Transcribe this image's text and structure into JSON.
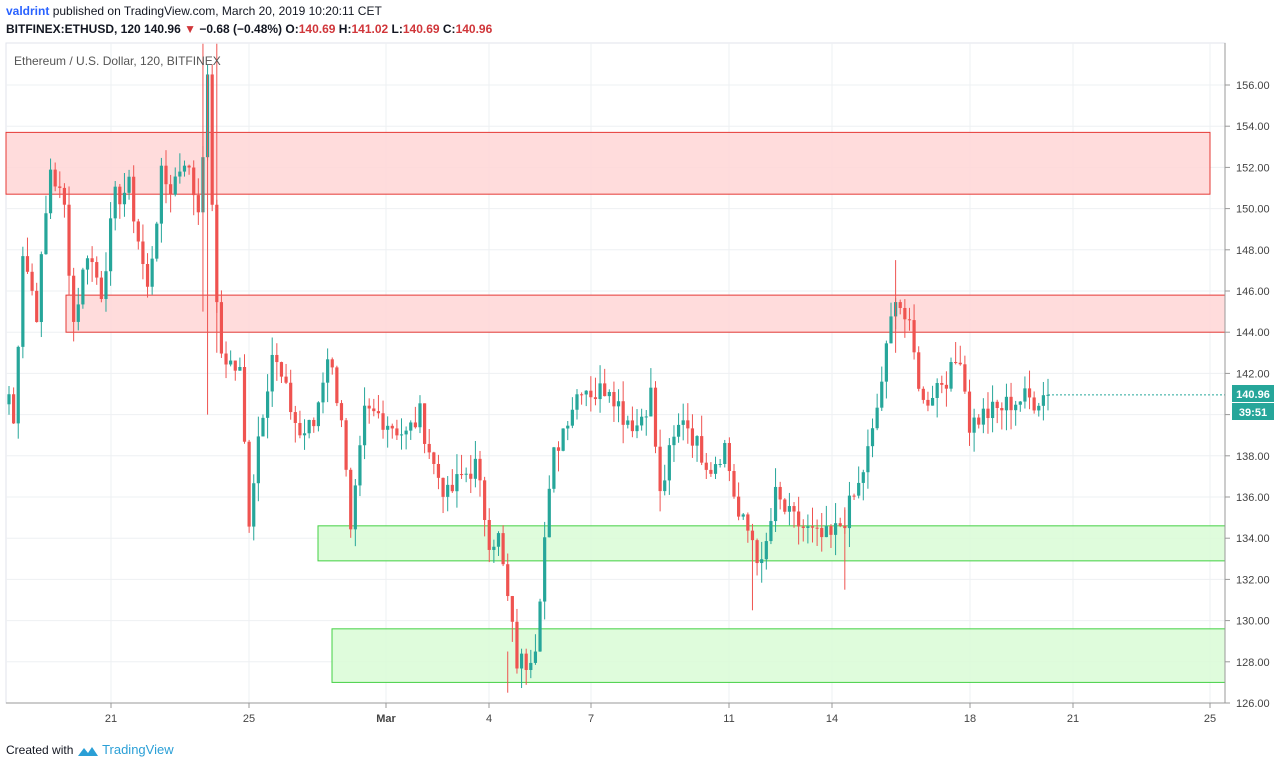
{
  "header": {
    "user": "valdrint",
    "published": "published on TradingView.com, March 20, 2019 10:20:11 CET",
    "symbol": "BITFINEX:ETHUSD, 120",
    "last": "140.96",
    "change_arrow": "▼",
    "change": "−0.68 (−0.48%)",
    "o_label": "O:",
    "o_val": "140.69",
    "h_label": "H:",
    "h_val": "141.02",
    "l_label": "L:",
    "l_val": "140.69",
    "c_label": "C:",
    "c_val": "140.96"
  },
  "footer": {
    "created_with": "Created with",
    "brand": "TradingView"
  },
  "colors": {
    "up": "#26a69a",
    "down": "#ef5350",
    "resistance_fill": "#ffd6d6",
    "resistance_stroke": "#e53935",
    "support_fill": "#d9fbd6",
    "support_stroke": "#43d043",
    "price_tag": "#26a69a"
  },
  "chart_data": {
    "type": "candlestick",
    "title": "Ethereum / U.S. Dollar, 120, BITFINEX",
    "ylim": [
      126,
      157
    ],
    "y_ticks": [
      "156.00",
      "154.00",
      "152.00",
      "150.00",
      "148.00",
      "146.00",
      "144.00",
      "142.00",
      "140.00",
      "138.00",
      "136.00",
      "134.00",
      "132.00",
      "130.00",
      "128.00",
      "126.00"
    ],
    "x_ticks": [
      "21",
      "25",
      "Mar",
      "4",
      "7",
      "11",
      "14",
      "18",
      "21",
      "25"
    ],
    "price_label": "140.96",
    "countdown_label": "39:51",
    "zones": [
      {
        "kind": "resistance",
        "from": "Feb 18",
        "to": "Mar 25",
        "low": 150.7,
        "high": 153.7
      },
      {
        "kind": "resistance",
        "from": "Feb 20",
        "to": "Mar 26",
        "low": 144.0,
        "high": 145.8
      },
      {
        "kind": "support",
        "from": "Feb 28",
        "to": "Mar 26",
        "low": 132.9,
        "high": 134.6
      },
      {
        "kind": "support",
        "from": "Mar 1",
        "to": "Mar 26",
        "low": 127.0,
        "high": 129.6
      }
    ],
    "path": [
      [
        0,
        141
      ],
      [
        1,
        139.5
      ],
      [
        3,
        148
      ],
      [
        6,
        145
      ],
      [
        9,
        152
      ],
      [
        12,
        150
      ],
      [
        14,
        144.5
      ],
      [
        17,
        148
      ],
      [
        20,
        146
      ],
      [
        23,
        150.5
      ],
      [
        26,
        151
      ],
      [
        30,
        146
      ],
      [
        33,
        151.5
      ],
      [
        35,
        151
      ],
      [
        38,
        152.5
      ],
      [
        41,
        150
      ],
      [
        43,
        156
      ],
      [
        45,
        145
      ],
      [
        46,
        143
      ],
      [
        50,
        142
      ],
      [
        52,
        135
      ],
      [
        54,
        139
      ],
      [
        57,
        143
      ],
      [
        60,
        141
      ],
      [
        63,
        139
      ],
      [
        66,
        139.5
      ],
      [
        69,
        143
      ],
      [
        72,
        140
      ],
      [
        74,
        134
      ],
      [
        77,
        140
      ],
      [
        80,
        140
      ],
      [
        83,
        139.5
      ],
      [
        86,
        139
      ],
      [
        89,
        140
      ],
      [
        92,
        137.5
      ],
      [
        95,
        136
      ],
      [
        98,
        137
      ],
      [
        101,
        137.5
      ],
      [
        104,
        134
      ],
      [
        106,
        134
      ],
      [
        108,
        131
      ],
      [
        110,
        128
      ],
      [
        112,
        128
      ],
      [
        114,
        129
      ],
      [
        116,
        134
      ],
      [
        118,
        138
      ],
      [
        121,
        140
      ],
      [
        124,
        141.5
      ],
      [
        127,
        141
      ],
      [
        130,
        141.5
      ],
      [
        133,
        140
      ],
      [
        136,
        139.5
      ],
      [
        139,
        141
      ],
      [
        141,
        136
      ],
      [
        143,
        138
      ],
      [
        146,
        140
      ],
      [
        149,
        138.5
      ],
      [
        152,
        137.5
      ],
      [
        155,
        138.5
      ],
      [
        158,
        135
      ],
      [
        161,
        134
      ],
      [
        163,
        132.5
      ],
      [
        166,
        136
      ],
      [
        169,
        135
      ],
      [
        172,
        134.5
      ],
      [
        175,
        134
      ],
      [
        178,
        134
      ],
      [
        181,
        135
      ],
      [
        184,
        136.5
      ],
      [
        187,
        139
      ],
      [
        190,
        143
      ],
      [
        192,
        146
      ],
      [
        195,
        144
      ],
      [
        198,
        140.5
      ],
      [
        201,
        141.5
      ],
      [
        204,
        142
      ],
      [
        206,
        143
      ],
      [
        208,
        139.5
      ],
      [
        211,
        140
      ],
      [
        214,
        140.2
      ],
      [
        217,
        140.6
      ],
      [
        220,
        140.8
      ],
      [
        222,
        140.7
      ],
      [
        224,
        140.96
      ]
    ]
  }
}
